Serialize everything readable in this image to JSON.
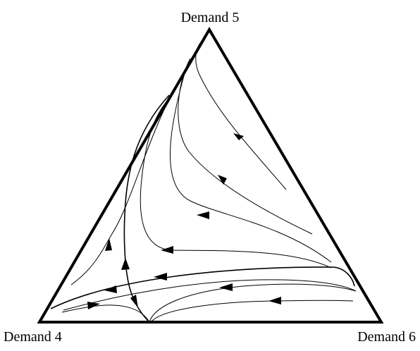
{
  "vertices": {
    "top": "Demand 5",
    "left": "Demand 4",
    "right": "Demand 6"
  },
  "colors": {
    "ink": "#000000",
    "background": "#ffffff"
  }
}
